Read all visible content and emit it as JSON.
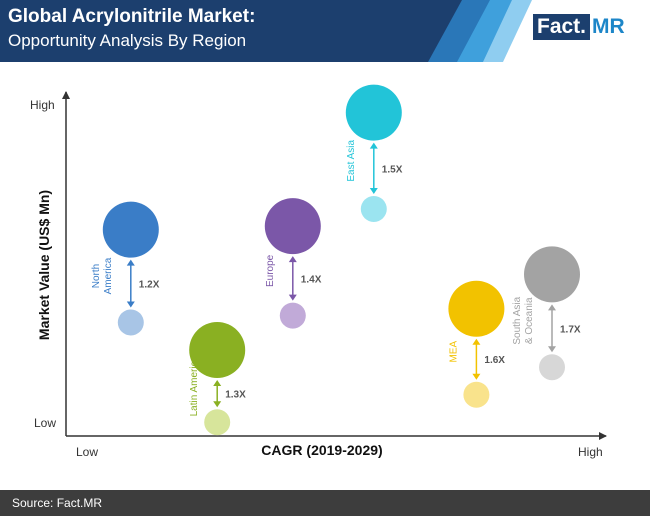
{
  "header": {
    "title": "Global Acrylonitrile Market:",
    "subtitle": "Opportunity Analysis By Region",
    "logo_part1": "Fact.",
    "logo_part2": "MR"
  },
  "footer": {
    "source": "Source: Fact.MR"
  },
  "chart_data": {
    "type": "scatter",
    "xlabel": "CAGR (2019-2029)",
    "ylabel": "Market Value (US$ Mn)",
    "x_low_label": "Low",
    "x_high_label": "High",
    "y_low_label": "Low",
    "y_high_label": "High",
    "series": [
      {
        "name": "North America",
        "label_lines": [
          "North",
          "America"
        ],
        "multiplier": "1.2X",
        "color": "#3a7dc7",
        "color_future": "#a8c5e6",
        "x": 0.12,
        "y_future": 0.6,
        "y_current": 0.33
      },
      {
        "name": "Latin America",
        "label_lines": [
          "Latin America"
        ],
        "multiplier": "1.3X",
        "color": "#8ab022",
        "color_future": "#d7e59b",
        "x": 0.28,
        "y_future": 0.25,
        "y_current": 0.04
      },
      {
        "name": "Europe",
        "label_lines": [
          "Europe"
        ],
        "multiplier": "1.4X",
        "color": "#7b57a8",
        "color_future": "#c1aad8",
        "x": 0.42,
        "y_future": 0.61,
        "y_current": 0.35
      },
      {
        "name": "East Asia",
        "label_lines": [
          "East Asia"
        ],
        "multiplier": "1.5X",
        "color": "#22c4d8",
        "color_future": "#9be4f0",
        "x": 0.57,
        "y_future": 0.94,
        "y_current": 0.66
      },
      {
        "name": "MEA",
        "label_lines": [
          "MEA"
        ],
        "multiplier": "1.6X",
        "color": "#f2c200",
        "color_future": "#f9e38c",
        "x": 0.76,
        "y_future": 0.37,
        "y_current": 0.12
      },
      {
        "name": "South Asia & Oceania",
        "label_lines": [
          "South Asia",
          "& Oceania"
        ],
        "multiplier": "1.7X",
        "color": "#a3a3a3",
        "color_future": "#d7d7d7",
        "x": 0.9,
        "y_future": 0.47,
        "y_current": 0.2
      }
    ]
  }
}
